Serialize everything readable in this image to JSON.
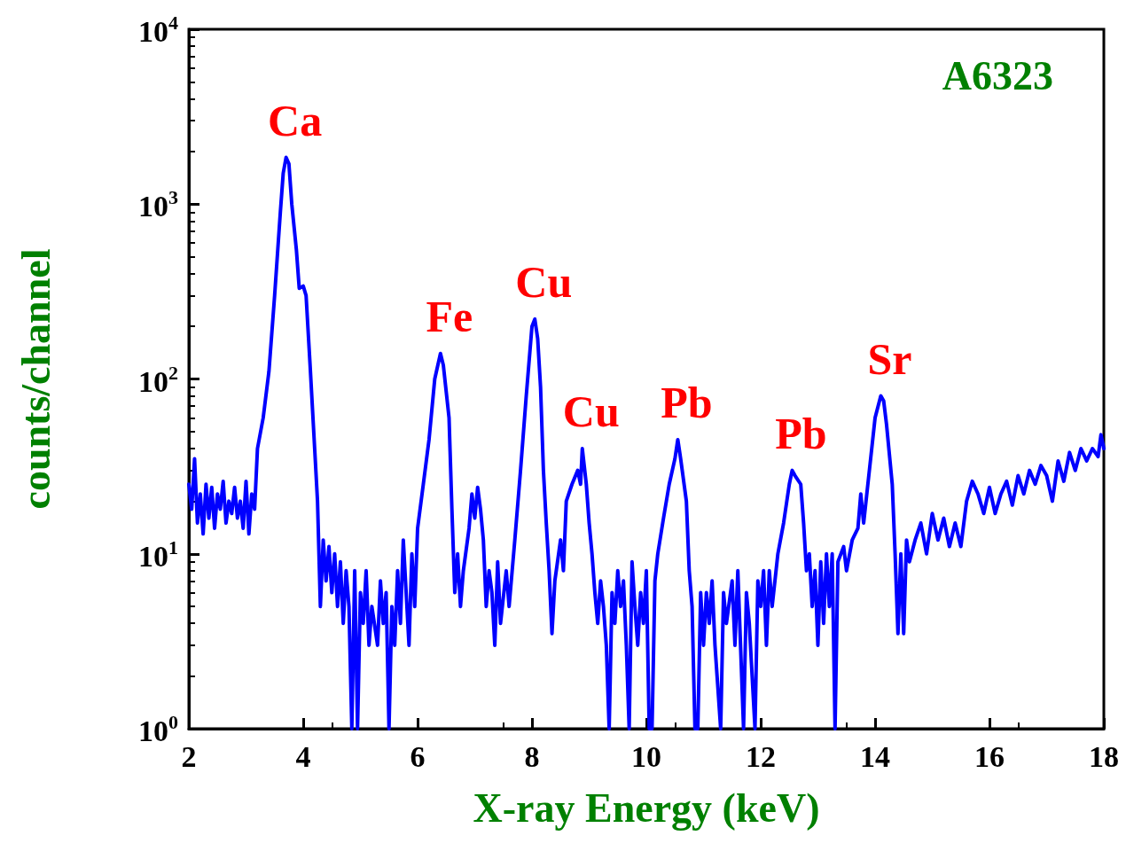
{
  "chart_data": {
    "type": "line",
    "xlabel": "X-ray Energy (keV)",
    "ylabel": "counts/channel",
    "log": "y",
    "grid": false,
    "marker": "none",
    "line_style": "solid",
    "xlim": [
      2,
      18
    ],
    "xticks": [
      2,
      4,
      6,
      8,
      10,
      12,
      14,
      16,
      18
    ],
    "ylim": [
      1,
      10000
    ],
    "yticks": [
      {
        "value": 1,
        "label": "10$^{0}$"
      },
      {
        "value": 10,
        "label": "10$^{1}$"
      },
      {
        "value": 100,
        "label": "10$^{2}$"
      },
      {
        "value": 1000,
        "label": "10$^{3}$"
      },
      {
        "value": 10000,
        "label": "10$^{4}$"
      }
    ],
    "annotations": [
      "A6323",
      {
        "text": "Ca",
        "x": 3.7,
        "y": 1850
      },
      {
        "text": "Fe",
        "x": 6.4,
        "y": 140
      },
      {
        "text": "Cu",
        "x": 8.05,
        "y": 220
      },
      {
        "text": "Cu",
        "x": 8.88,
        "y": 40
      },
      {
        "text": "Pb",
        "x": 10.55,
        "y": 45
      },
      {
        "text": "Pb",
        "x": 12.55,
        "y": 30
      },
      {
        "text": "Sr",
        "x": 14.1,
        "y": 80
      }
    ],
    "series": [
      {
        "color": "#0000ff",
        "x": [
          2.0,
          2.05,
          2.1,
          2.15,
          2.2,
          2.25,
          2.3,
          2.35,
          2.4,
          2.45,
          2.5,
          2.55,
          2.6,
          2.65,
          2.7,
          2.75,
          2.8,
          2.85,
          2.9,
          2.95,
          3.0,
          3.05,
          3.1,
          3.15,
          3.2,
          3.3,
          3.4,
          3.5,
          3.6,
          3.65,
          3.7,
          3.75,
          3.8,
          3.88,
          3.93,
          4.0,
          4.05,
          4.12,
          4.2,
          4.25,
          4.3,
          4.35,
          4.4,
          4.45,
          4.5,
          4.55,
          4.6,
          4.65,
          4.7,
          4.75,
          4.8,
          4.85,
          4.9,
          4.95,
          5.0,
          5.05,
          5.1,
          5.15,
          5.2,
          5.3,
          5.35,
          5.4,
          5.45,
          5.5,
          5.55,
          5.6,
          5.65,
          5.7,
          5.75,
          5.8,
          5.85,
          5.9,
          5.95,
          6.0,
          6.1,
          6.2,
          6.3,
          6.4,
          6.45,
          6.55,
          6.6,
          6.65,
          6.7,
          6.75,
          6.8,
          6.9,
          6.95,
          7.0,
          7.05,
          7.1,
          7.15,
          7.2,
          7.25,
          7.3,
          7.35,
          7.4,
          7.45,
          7.55,
          7.6,
          7.7,
          7.8,
          7.9,
          8.0,
          8.05,
          8.1,
          8.15,
          8.2,
          8.25,
          8.3,
          8.35,
          8.4,
          8.5,
          8.55,
          8.6,
          8.7,
          8.8,
          8.85,
          8.88,
          8.95,
          9.0,
          9.05,
          9.1,
          9.15,
          9.2,
          9.25,
          9.3,
          9.35,
          9.4,
          9.45,
          9.5,
          9.55,
          9.6,
          9.65,
          9.7,
          9.75,
          9.8,
          9.85,
          9.9,
          9.95,
          10.0,
          10.05,
          10.1,
          10.15,
          10.2,
          10.3,
          10.4,
          10.5,
          10.55,
          10.6,
          10.7,
          10.75,
          10.8,
          10.85,
          10.9,
          10.95,
          11.0,
          11.05,
          11.1,
          11.15,
          11.2,
          11.3,
          11.35,
          11.4,
          11.5,
          11.55,
          11.6,
          11.7,
          11.75,
          11.8,
          11.9,
          11.95,
          12.0,
          12.05,
          12.1,
          12.15,
          12.2,
          12.3,
          12.4,
          12.5,
          12.55,
          12.6,
          12.7,
          12.75,
          12.8,
          12.85,
          12.9,
          12.95,
          13.0,
          13.05,
          13.1,
          13.15,
          13.2,
          13.25,
          13.3,
          13.35,
          13.45,
          13.5,
          13.6,
          13.7,
          13.75,
          13.8,
          13.9,
          14.0,
          14.1,
          14.15,
          14.2,
          14.3,
          14.35,
          14.4,
          14.45,
          14.5,
          14.55,
          14.6,
          14.7,
          14.8,
          14.9,
          15.0,
          15.1,
          15.2,
          15.3,
          15.4,
          15.5,
          15.6,
          15.7,
          15.8,
          15.9,
          16.0,
          16.1,
          16.2,
          16.3,
          16.4,
          16.5,
          16.6,
          16.7,
          16.8,
          16.9,
          17.0,
          17.1,
          17.2,
          17.3,
          17.4,
          17.5,
          17.6,
          17.7,
          17.8,
          17.9,
          17.95,
          18.0
        ],
        "values": [
          25,
          18,
          35,
          15,
          22,
          13,
          25,
          16,
          24,
          14,
          22,
          18,
          26,
          15,
          20,
          17,
          24,
          16,
          20,
          14,
          26,
          13,
          22,
          18,
          40,
          60,
          110,
          300,
          900,
          1500,
          1850,
          1700,
          1000,
          550,
          330,
          340,
          300,
          120,
          40,
          20,
          5,
          12,
          7,
          11,
          6,
          10,
          5,
          9,
          4,
          8,
          5,
          1,
          8,
          1,
          6,
          4,
          8,
          3,
          5,
          3,
          7,
          4,
          6,
          1,
          5,
          3,
          8,
          4,
          12,
          6,
          3,
          10,
          5,
          14,
          25,
          45,
          100,
          140,
          120,
          60,
          18,
          6,
          10,
          5,
          8,
          14,
          22,
          16,
          24,
          18,
          12,
          5,
          8,
          6,
          3,
          9,
          4,
          8,
          5,
          12,
          30,
          80,
          200,
          220,
          170,
          90,
          30,
          15,
          8,
          3.5,
          7,
          12,
          8,
          20,
          25,
          30,
          25,
          40,
          25,
          15,
          10,
          6,
          4,
          7,
          5,
          3,
          1,
          6,
          4,
          8,
          5,
          7,
          3,
          1,
          9,
          5,
          3,
          6,
          4,
          8,
          1,
          1,
          7,
          10,
          16,
          25,
          35,
          45,
          35,
          20,
          8,
          5,
          1,
          1,
          6,
          3,
          6,
          4,
          7,
          3,
          1,
          6,
          4,
          7,
          3,
          8,
          1,
          6,
          4,
          1,
          7,
          5,
          8,
          3,
          8,
          5,
          10,
          15,
          25,
          30,
          28,
          25,
          15,
          8,
          10,
          5,
          8,
          3,
          9,
          4,
          10,
          5,
          10,
          1,
          9,
          11,
          8,
          12,
          14,
          22,
          15,
          30,
          60,
          80,
          75,
          55,
          25,
          10,
          3.5,
          10,
          3.5,
          12,
          9,
          12,
          15,
          10,
          17,
          12,
          16,
          11,
          15,
          11,
          20,
          26,
          22,
          17,
          24,
          17,
          22,
          26,
          19,
          28,
          22,
          30,
          25,
          32,
          28,
          20,
          34,
          26,
          38,
          30,
          40,
          34,
          40,
          36,
          48,
          40
        ]
      }
    ]
  }
}
